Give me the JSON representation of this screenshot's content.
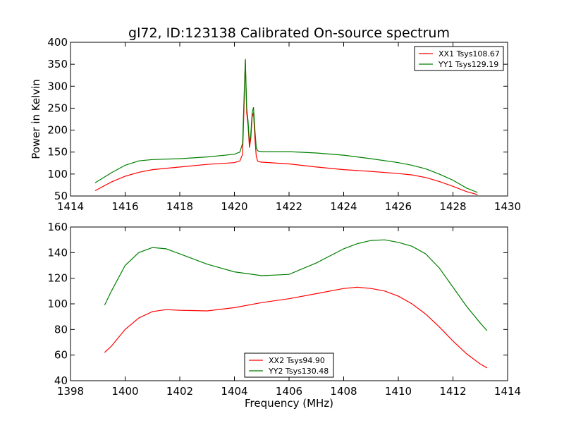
{
  "title": "gl72, ID:123138 Calibrated On-source spectrum",
  "colors": {
    "xx": "#ff0000",
    "yy": "#008000"
  },
  "chart_data": [
    {
      "type": "line",
      "xlabel": "",
      "ylabel": "Power in Kelvin",
      "xlim": [
        1414,
        1430
      ],
      "ylim": [
        50,
        400
      ],
      "xticks": [
        1414,
        1416,
        1418,
        1420,
        1422,
        1424,
        1426,
        1428,
        1430
      ],
      "yticks": [
        50,
        100,
        150,
        200,
        250,
        300,
        350,
        400
      ],
      "legend_position": "top-right",
      "series": [
        {
          "name": "XX1 Tsys108.67",
          "color": "#ff0000",
          "x": [
            1414.9,
            1415.5,
            1416.0,
            1416.5,
            1417.0,
            1418.0,
            1419.0,
            1420.0,
            1420.2,
            1420.3,
            1420.35,
            1420.4,
            1420.45,
            1420.5,
            1420.55,
            1420.6,
            1420.65,
            1420.7,
            1420.75,
            1420.8,
            1420.85,
            1420.9,
            1421.0,
            1422.0,
            1423.0,
            1424.0,
            1425.0,
            1426.0,
            1426.5,
            1427.0,
            1427.5,
            1428.0,
            1428.5,
            1428.9
          ],
          "y": [
            62,
            82,
            95,
            104,
            110,
            116,
            122,
            126,
            130,
            145,
            250,
            360,
            240,
            210,
            160,
            180,
            230,
            240,
            180,
            140,
            130,
            128,
            127,
            123,
            116,
            110,
            106,
            101,
            98,
            92,
            83,
            72,
            60,
            53
          ]
        },
        {
          "name": "YY1 Tsys129.19",
          "color": "#008000",
          "x": [
            1414.9,
            1415.5,
            1416.0,
            1416.5,
            1417.0,
            1418.0,
            1419.0,
            1420.0,
            1420.2,
            1420.3,
            1420.35,
            1420.4,
            1420.45,
            1420.5,
            1420.55,
            1420.6,
            1420.65,
            1420.7,
            1420.75,
            1420.8,
            1420.85,
            1420.9,
            1421.0,
            1422.0,
            1423.0,
            1424.0,
            1425.0,
            1426.0,
            1426.5,
            1427.0,
            1427.5,
            1428.0,
            1428.5,
            1428.9
          ],
          "y": [
            80,
            103,
            120,
            130,
            133,
            135,
            139,
            145,
            150,
            170,
            270,
            362,
            250,
            220,
            170,
            190,
            240,
            252,
            200,
            160,
            153,
            152,
            151,
            151,
            148,
            143,
            135,
            126,
            120,
            112,
            100,
            86,
            68,
            58
          ]
        }
      ]
    },
    {
      "type": "line",
      "xlabel": "Frequency (MHz)",
      "ylabel": "",
      "xlim": [
        1398,
        1414
      ],
      "ylim": [
        40,
        160
      ],
      "xticks": [
        1398,
        1400,
        1402,
        1404,
        1406,
        1408,
        1410,
        1412,
        1414
      ],
      "yticks": [
        40,
        60,
        80,
        100,
        120,
        140,
        160
      ],
      "legend_position": "bottom-center",
      "series": [
        {
          "name": "XX2 Tsys94.90",
          "color": "#ff0000",
          "x": [
            1399.25,
            1399.5,
            1400.0,
            1400.5,
            1401.0,
            1401.5,
            1402.0,
            1403.0,
            1404.0,
            1405.0,
            1406.0,
            1407.0,
            1408.0,
            1408.5,
            1409.0,
            1409.5,
            1410.0,
            1410.5,
            1411.0,
            1411.5,
            1412.0,
            1412.5,
            1413.0,
            1413.25
          ],
          "y": [
            62,
            67,
            80,
            89,
            94,
            95.5,
            95,
            94.5,
            97,
            101,
            104,
            108,
            112,
            113,
            112,
            110,
            106,
            100,
            92,
            82,
            71,
            61,
            53,
            50
          ]
        },
        {
          "name": "YY2 Tsys130.48",
          "color": "#008000",
          "x": [
            1399.25,
            1399.5,
            1400.0,
            1400.5,
            1401.0,
            1401.5,
            1402.0,
            1403.0,
            1404.0,
            1405.0,
            1406.0,
            1407.0,
            1408.0,
            1408.5,
            1409.0,
            1409.5,
            1410.0,
            1410.5,
            1411.0,
            1411.5,
            1412.0,
            1412.5,
            1413.0,
            1413.25
          ],
          "y": [
            99,
            110,
            130,
            140,
            144,
            143,
            139,
            131,
            125,
            122,
            123,
            132,
            143,
            147,
            149.5,
            150,
            148,
            145,
            139,
            128,
            113,
            98,
            85,
            79
          ]
        }
      ]
    }
  ]
}
